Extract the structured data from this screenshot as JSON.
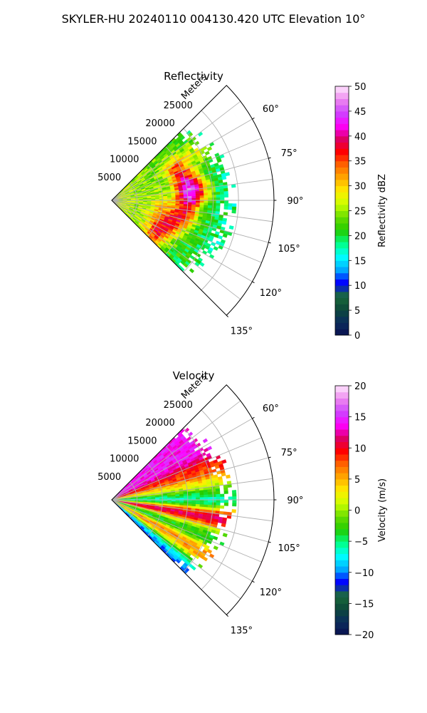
{
  "page": {
    "suptitle": "SKYLER-HU  20240110  004130.420 UTC Elevation 10°"
  },
  "colors": {
    "ring_grid": "#b0b0b0",
    "frame": "#000000"
  },
  "chart_data": [
    {
      "type": "heatmap",
      "subtype": "polar-ppi-sector",
      "title": "Reflectivity",
      "radial_axis_label": "Meters",
      "radial_ticks": [
        "5000",
        "10000",
        "15000",
        "20000",
        "25000"
      ],
      "radial_range_m": [
        0,
        32000
      ],
      "data_extent_m": 24000,
      "angle_ticks_deg": [
        60,
        75,
        90,
        105,
        120,
        135
      ],
      "angle_tick_labels": [
        "60°",
        "75°",
        "90°",
        "105°",
        "120°",
        "135°"
      ],
      "sector_deg": [
        45,
        135
      ],
      "colorbar": {
        "label": "Reflectivity dBZ",
        "range": [
          0,
          50
        ],
        "ticks": [
          "0",
          "5",
          "10",
          "15",
          "20",
          "25",
          "30",
          "35",
          "40",
          "45",
          "50"
        ],
        "stops": [
          "#0a1050",
          "#0b2d5c",
          "#0d4a3a",
          "#1a6a3a",
          "#0000ff",
          "#00aaff",
          "#00ffff",
          "#00ff88",
          "#22cc00",
          "#66dd00",
          "#ccff00",
          "#ffee00",
          "#ffaa00",
          "#ff6600",
          "#ff0000",
          "#dd0066",
          "#ff00ff",
          "#cc44ff",
          "#ee88ee",
          "#ffe8ff"
        ]
      },
      "features": [
        {
          "azimuth_deg": 64,
          "range_m": 14000,
          "value": 36
        },
        {
          "azimuth_deg": 78,
          "range_m": 14500,
          "value": 37
        },
        {
          "azimuth_deg": 90,
          "range_m": 15000,
          "value": 38
        },
        {
          "azimuth_deg": 82,
          "range_m": 17000,
          "value": 34
        },
        {
          "azimuth_deg": 60,
          "range_m": 19000,
          "value": 31
        },
        {
          "azimuth_deg": 103,
          "range_m": 14000,
          "value": 33
        },
        {
          "azimuth_deg": 111,
          "range_m": 12500,
          "value": 32
        },
        {
          "azimuth_deg": 125,
          "range_m": 10500,
          "value": 37
        },
        {
          "azimuth_deg": 100,
          "range_m": 9500,
          "value": 30
        }
      ]
    },
    {
      "type": "heatmap",
      "subtype": "polar-ppi-sector",
      "title": "Velocity",
      "radial_axis_label": "Meters",
      "radial_ticks": [
        "5000",
        "10000",
        "15000",
        "20000",
        "25000"
      ],
      "radial_range_m": [
        0,
        32000
      ],
      "data_extent_m": 24000,
      "angle_ticks_deg": [
        60,
        75,
        90,
        105,
        120,
        135
      ],
      "angle_tick_labels": [
        "60°",
        "75°",
        "90°",
        "105°",
        "120°",
        "135°"
      ],
      "sector_deg": [
        45,
        135
      ],
      "colorbar": {
        "label": "Velocity (m/s)",
        "range": [
          -20,
          20
        ],
        "ticks": [
          "−20",
          "−15",
          "−10",
          "−5",
          "0",
          "5",
          "10",
          "15",
          "20"
        ],
        "stops": [
          "#0a1050",
          "#0b2d5c",
          "#0d4a3a",
          "#1a6a3a",
          "#0000ff",
          "#00aaff",
          "#00ffff",
          "#00ff88",
          "#22cc00",
          "#66dd00",
          "#ccff00",
          "#ffee00",
          "#ffaa00",
          "#ff6600",
          "#ff0000",
          "#dd0066",
          "#ff00ff",
          "#cc44ff",
          "#ee88ee",
          "#ffe8ff"
        ]
      },
      "features": [
        {
          "azimuth_deg": 60,
          "range_m": 12000,
          "value": 14
        },
        {
          "azimuth_deg": 72,
          "range_m": 10000,
          "value": 9
        },
        {
          "azimuth_deg": 82,
          "range_m": 12000,
          "value": 2
        },
        {
          "azimuth_deg": 90,
          "range_m": 14000,
          "value": -9
        },
        {
          "azimuth_deg": 100,
          "range_m": 12000,
          "value": 14
        },
        {
          "azimuth_deg": 110,
          "range_m": 14000,
          "value": -5
        },
        {
          "azimuth_deg": 122,
          "range_m": 10000,
          "value": 9
        },
        {
          "azimuth_deg": 130,
          "range_m": 9000,
          "value": -11
        }
      ]
    }
  ]
}
